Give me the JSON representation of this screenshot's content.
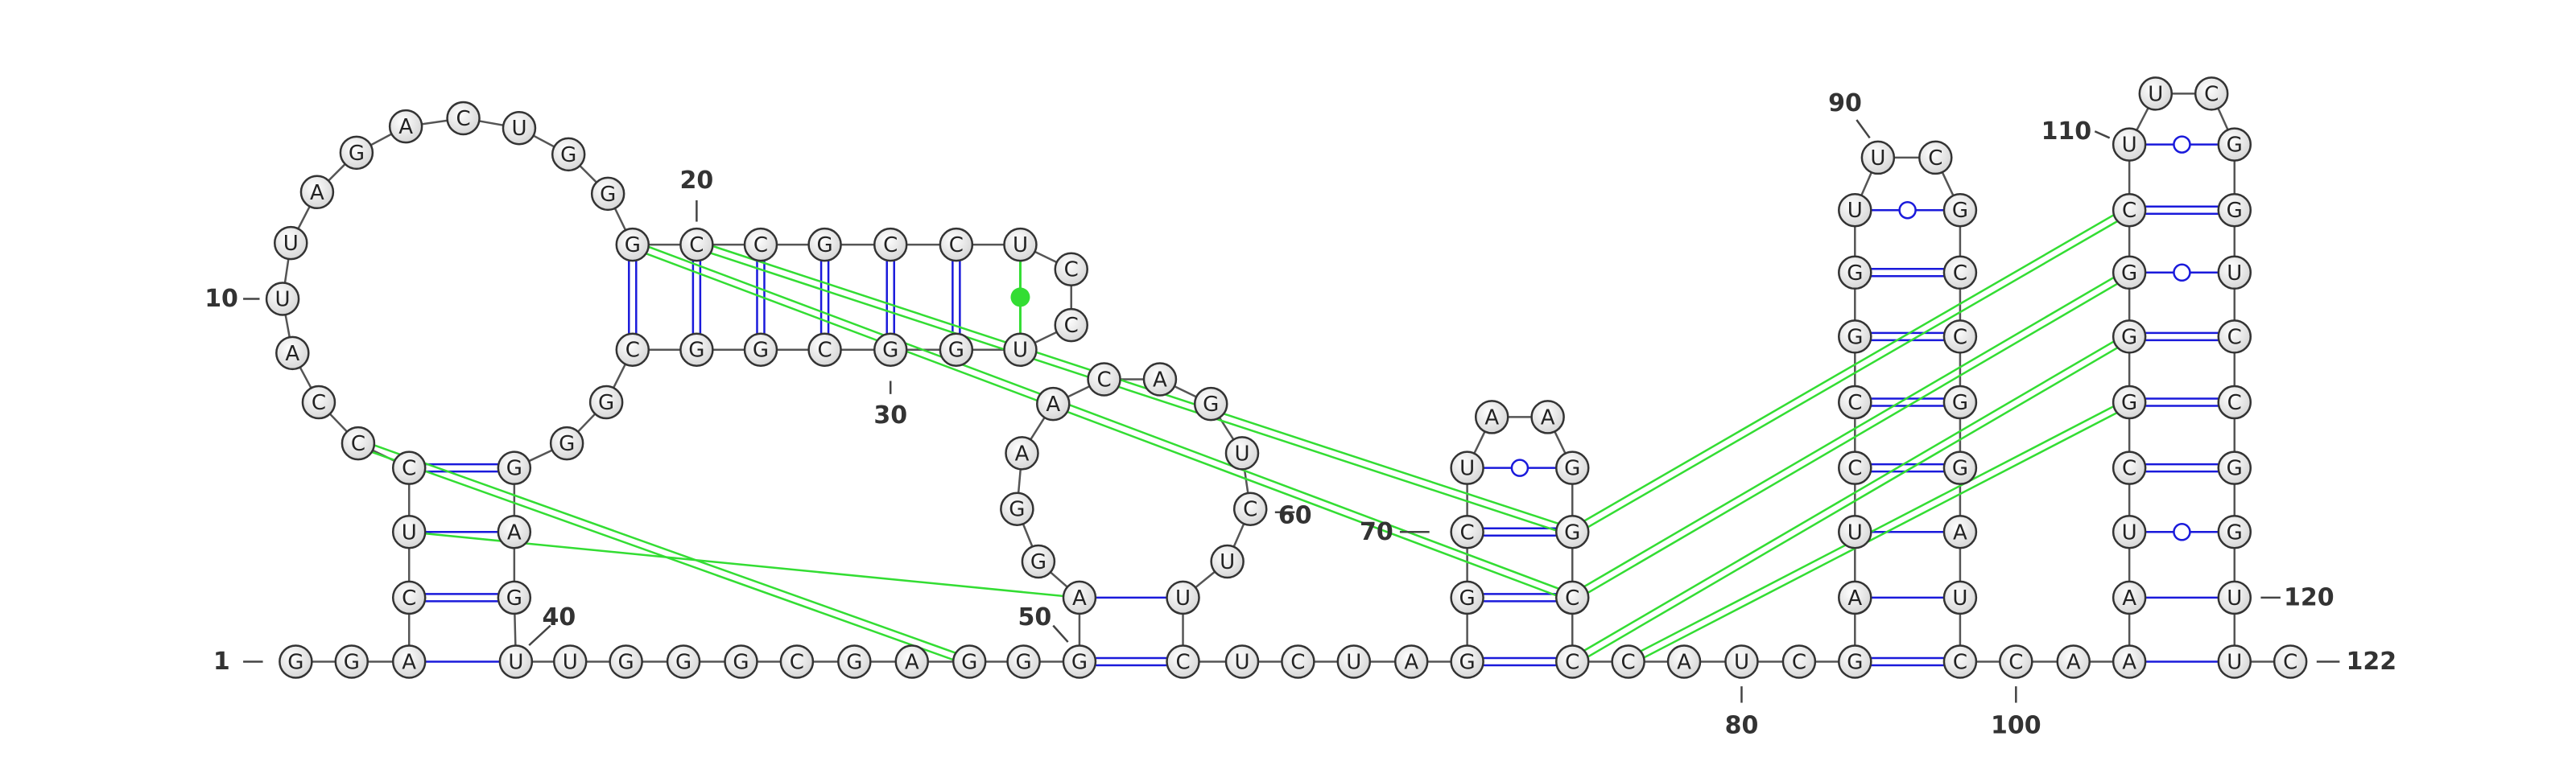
{
  "nucleotides": [
    "G",
    "G",
    "A",
    "C",
    "U",
    "C",
    "C",
    "C",
    "A",
    "U",
    "U",
    "A",
    "G",
    "A",
    "C",
    "U",
    "G",
    "G",
    "G",
    "C",
    "C",
    "G",
    "C",
    "C",
    "U",
    "C",
    "C",
    "U",
    "G",
    "G",
    "C",
    "G",
    "G",
    "C",
    "G",
    "G",
    "G",
    "A",
    "G",
    "U",
    "U",
    "G",
    "G",
    "G",
    "C",
    "G",
    "A",
    "G",
    "G",
    "G",
    "A",
    "G",
    "G",
    "A",
    "A",
    "C",
    "A",
    "G",
    "U",
    "C",
    "U",
    "U",
    "C",
    "U",
    "C",
    "U",
    "A",
    "G",
    "G",
    "C",
    "U",
    "A",
    "A",
    "G",
    "G",
    "C",
    "C",
    "C",
    "A",
    "U",
    "C",
    "G",
    "A",
    "U",
    "C",
    "C",
    "G",
    "G",
    "U",
    "U",
    "C",
    "G",
    "C",
    "C",
    "G",
    "G",
    "A",
    "U",
    "C",
    "C",
    "A",
    "A",
    "A",
    "U",
    "C",
    "G",
    "G",
    "G",
    "C",
    "U",
    "U",
    "C",
    "G",
    "G",
    "U",
    "C",
    "C",
    "G",
    "G",
    "U",
    "U",
    "C"
  ],
  "numbers": [
    1,
    10,
    20,
    30,
    40,
    50,
    60,
    70,
    80,
    90,
    100,
    110,
    120,
    122
  ]
}
